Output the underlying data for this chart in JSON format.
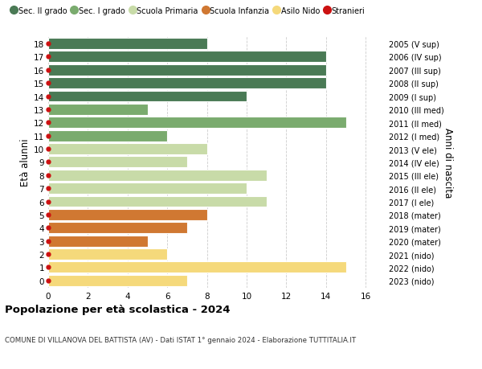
{
  "ages": [
    18,
    17,
    16,
    15,
    14,
    13,
    12,
    11,
    10,
    9,
    8,
    7,
    6,
    5,
    4,
    3,
    2,
    1,
    0
  ],
  "values": [
    8,
    14,
    14,
    14,
    10,
    5,
    15,
    6,
    8,
    7,
    11,
    10,
    11,
    8,
    7,
    5,
    6,
    15,
    7
  ],
  "right_labels": [
    "2005 (V sup)",
    "2006 (IV sup)",
    "2007 (III sup)",
    "2008 (II sup)",
    "2009 (I sup)",
    "2010 (III med)",
    "2011 (II med)",
    "2012 (I med)",
    "2013 (V ele)",
    "2014 (IV ele)",
    "2015 (III ele)",
    "2016 (II ele)",
    "2017 (I ele)",
    "2018 (mater)",
    "2019 (mater)",
    "2020 (mater)",
    "2021 (nido)",
    "2022 (nido)",
    "2023 (nido)"
  ],
  "bar_colors": [
    "#4a7a55",
    "#4a7a55",
    "#4a7a55",
    "#4a7a55",
    "#4a7a55",
    "#7aab6e",
    "#7aab6e",
    "#7aab6e",
    "#c8dba8",
    "#c8dba8",
    "#c8dba8",
    "#c8dba8",
    "#c8dba8",
    "#d07832",
    "#d07832",
    "#d07832",
    "#f5d97b",
    "#f5d97b",
    "#f5d97b"
  ],
  "legend_labels": [
    "Sec. II grado",
    "Sec. I grado",
    "Scuola Primaria",
    "Scuola Infanzia",
    "Asilo Nido",
    "Stranieri"
  ],
  "legend_colors": [
    "#4a7a55",
    "#7aab6e",
    "#c8dba8",
    "#d07832",
    "#f5d97b",
    "#cc1111"
  ],
  "dot_color": "#cc1111",
  "title": "Popolazione per età scolastica - 2024",
  "subtitle": "COMUNE DI VILLANOVA DEL BATTISTA (AV) - Dati ISTAT 1° gennaio 2024 - Elaborazione TUTTITALIA.IT",
  "ylabel": "Età alunni",
  "right_ylabel": "Anni di nascita",
  "xlim": [
    0,
    17
  ],
  "xticks": [
    0,
    2,
    4,
    6,
    8,
    10,
    12,
    14,
    16
  ],
  "background_color": "#ffffff",
  "grid_color": "#cccccc"
}
